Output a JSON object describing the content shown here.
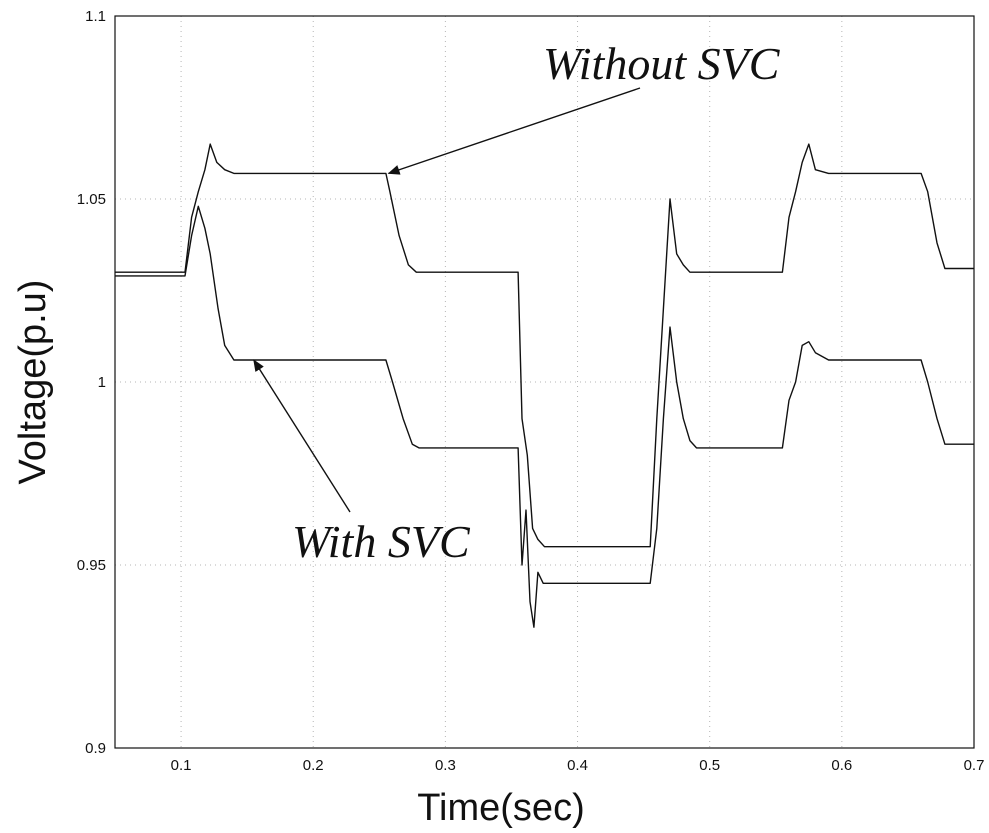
{
  "chart_data": {
    "type": "line",
    "xlabel": "Time(sec)",
    "ylabel": "Voltage(p.u)",
    "xlim": [
      0.05,
      0.7
    ],
    "ylim": [
      0.9,
      1.1
    ],
    "xticks": [
      0.1,
      0.2,
      0.3,
      0.4,
      0.5,
      0.6,
      0.7
    ],
    "xtick_labels": [
      "0.1",
      "0.2",
      "0.3",
      "0.4",
      "0.5",
      "0.6",
      "0.7"
    ],
    "yticks": [
      0.9,
      0.95,
      1.0,
      1.05,
      1.1
    ],
    "ytick_labels": [
      "0.9",
      "0.95",
      "1",
      "1.05",
      "1.1"
    ],
    "grid": true,
    "colors": {
      "line": "#111111",
      "grid": "#b5b5b5"
    },
    "series": [
      {
        "x": [
          0.05,
          0.103,
          0.108,
          0.113,
          0.118,
          0.122,
          0.127,
          0.133,
          0.14,
          0.15,
          0.255,
          0.258,
          0.265,
          0.272,
          0.278,
          0.355,
          0.358,
          0.362,
          0.366,
          0.37,
          0.375,
          0.38,
          0.455,
          0.46,
          0.465,
          0.47,
          0.475,
          0.48,
          0.485,
          0.495,
          0.555,
          0.56,
          0.565,
          0.57,
          0.575,
          0.58,
          0.59,
          0.66,
          0.665,
          0.672,
          0.678,
          0.7
        ],
        "y": [
          1.03,
          1.03,
          1.045,
          1.052,
          1.058,
          1.065,
          1.06,
          1.058,
          1.057,
          1.057,
          1.057,
          1.052,
          1.04,
          1.032,
          1.03,
          1.03,
          0.99,
          0.98,
          0.96,
          0.957,
          0.955,
          0.955,
          0.955,
          0.99,
          1.02,
          1.05,
          1.035,
          1.032,
          1.03,
          1.03,
          1.03,
          1.045,
          1.052,
          1.06,
          1.065,
          1.058,
          1.057,
          1.057,
          1.052,
          1.038,
          1.031,
          1.031
        ]
      },
      {
        "x": [
          0.05,
          0.103,
          0.108,
          0.113,
          0.118,
          0.122,
          0.128,
          0.133,
          0.14,
          0.15,
          0.255,
          0.26,
          0.268,
          0.275,
          0.28,
          0.355,
          0.358,
          0.361,
          0.364,
          0.367,
          0.37,
          0.374,
          0.38,
          0.455,
          0.46,
          0.465,
          0.47,
          0.475,
          0.48,
          0.485,
          0.49,
          0.555,
          0.56,
          0.565,
          0.57,
          0.575,
          0.58,
          0.59,
          0.66,
          0.665,
          0.672,
          0.678,
          0.7
        ],
        "y": [
          1.029,
          1.029,
          1.04,
          1.048,
          1.042,
          1.035,
          1.02,
          1.01,
          1.006,
          1.006,
          1.006,
          1.0,
          0.99,
          0.983,
          0.982,
          0.982,
          0.95,
          0.965,
          0.94,
          0.933,
          0.948,
          0.945,
          0.945,
          0.945,
          0.96,
          0.99,
          1.015,
          1.0,
          0.99,
          0.984,
          0.982,
          0.982,
          0.995,
          1.0,
          1.01,
          1.011,
          1.008,
          1.006,
          1.006,
          1.0,
          0.99,
          0.983,
          0.983
        ]
      }
    ],
    "annotations": [
      {
        "text": "Without SVC",
        "arrow_to": [
          0.257,
          1.057
        ]
      },
      {
        "text": "With SVC",
        "arrow_to": [
          0.155,
          1.006
        ]
      }
    ]
  }
}
